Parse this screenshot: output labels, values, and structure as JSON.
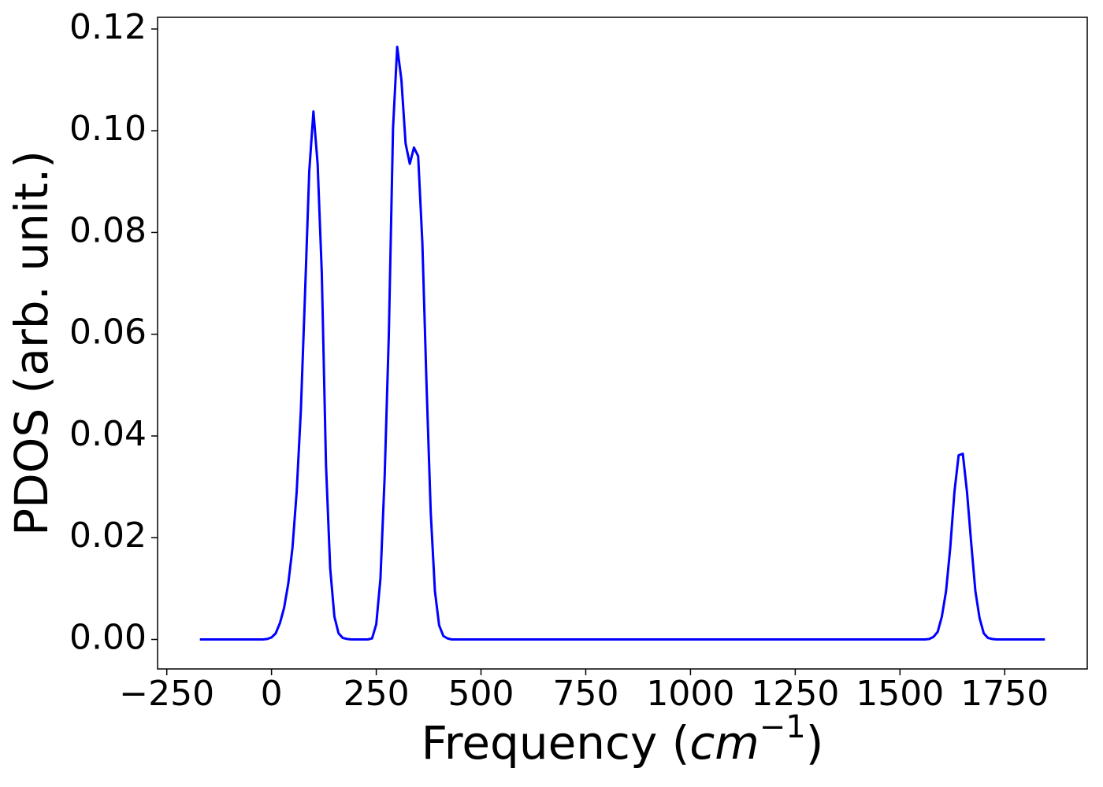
{
  "chart_data": {
    "type": "line",
    "xlabel": {
      "text": "Frequency (",
      "math": "cm",
      "sup": "−1",
      "close": ")"
    },
    "ylabel": "PDOS (arb. unit.)",
    "x": [
      -171,
      -20,
      -10,
      0,
      10,
      20,
      30,
      40,
      50,
      60,
      70,
      80,
      90,
      100,
      110,
      120,
      130,
      140,
      150,
      160,
      170,
      180,
      190,
      230,
      240,
      250,
      260,
      270,
      280,
      290,
      300,
      310,
      320,
      330,
      340,
      350,
      360,
      370,
      380,
      390,
      400,
      410,
      420,
      430,
      1560,
      1570,
      1580,
      1590,
      1600,
      1610,
      1620,
      1630,
      1640,
      1650,
      1660,
      1670,
      1680,
      1690,
      1700,
      1710,
      1720,
      1730,
      1846
    ],
    "series": [
      {
        "name": "PDOS",
        "color": "#0000ff",
        "values": [
          0,
          0,
          0.0001,
          0.0004,
          0.0012,
          0.0032,
          0.0062,
          0.011,
          0.018,
          0.029,
          0.045,
          0.068,
          0.092,
          0.1038,
          0.0935,
          0.072,
          0.0344,
          0.014,
          0.0045,
          0.0012,
          0.0003,
          0.0001,
          0,
          0,
          0.0002,
          0.003,
          0.012,
          0.032,
          0.06,
          0.1005,
          0.1165,
          0.11,
          0.0975,
          0.0935,
          0.0967,
          0.095,
          0.078,
          0.05,
          0.025,
          0.0095,
          0.0028,
          0.0007,
          0.0002,
          0,
          0,
          0.0001,
          0.0005,
          0.0015,
          0.0045,
          0.0095,
          0.018,
          0.029,
          0.0362,
          0.0365,
          0.029,
          0.019,
          0.0095,
          0.0042,
          0.0012,
          0.0003,
          0.0001,
          0,
          0
        ]
      }
    ],
    "xlim": [
      -272,
      1947
    ],
    "ylim": [
      -0.0058,
      0.1223
    ],
    "xticks": [
      {
        "value": -250,
        "label": "−250"
      },
      0,
      250,
      500,
      750,
      1000,
      1250,
      1500,
      1750
    ],
    "yticks": [
      {
        "value": 0,
        "label": "0.00"
      },
      {
        "value": 0.02,
        "label": "0.02"
      },
      {
        "value": 0.04,
        "label": "0.04"
      },
      {
        "value": 0.06,
        "label": "0.06"
      },
      {
        "value": 0.08,
        "label": "0.08"
      },
      {
        "value": 0.1,
        "label": "0.10"
      },
      {
        "value": 0.12,
        "label": "0.12"
      }
    ],
    "grid": false
  }
}
